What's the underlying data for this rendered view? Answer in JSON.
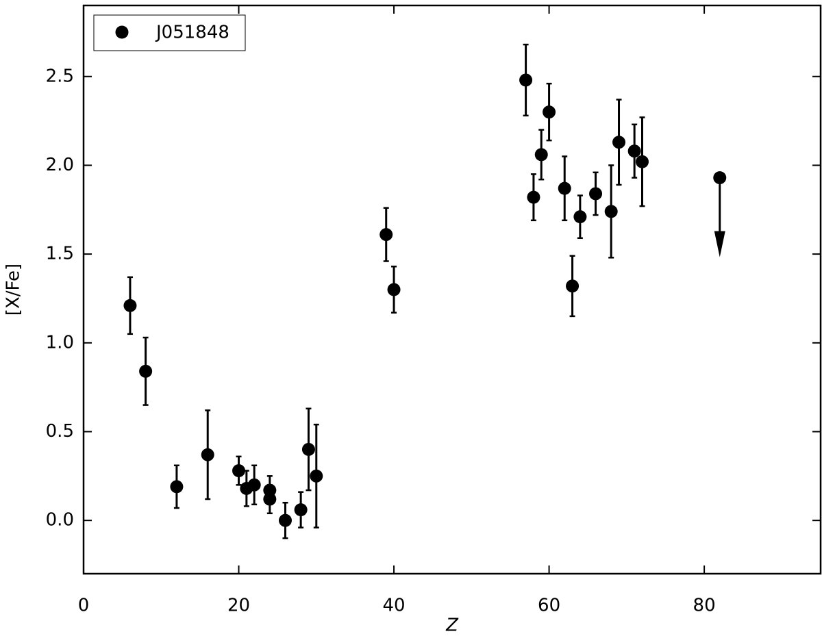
{
  "chart_data": {
    "type": "scatter",
    "xlabel": "Z",
    "ylabel": "[X/Fe]",
    "xlim": [
      0,
      95
    ],
    "ylim": [
      -0.3,
      2.9
    ],
    "xticks": [
      0,
      20,
      40,
      60,
      80
    ],
    "yticks": [
      {
        "value": 0,
        "label": "0.0"
      },
      0.5,
      {
        "value": 1,
        "label": "1.0"
      },
      1.5,
      {
        "value": 2,
        "label": "2.0"
      },
      2.5
    ],
    "legend": "upper left",
    "series": [
      {
        "name": "J051848",
        "color": "#000000",
        "x": [
          6,
          8,
          12,
          16,
          20,
          21,
          22,
          24,
          24,
          26,
          28,
          29,
          30,
          39,
          40,
          57,
          58,
          59,
          60,
          62,
          63,
          64,
          66,
          68,
          69,
          71,
          72,
          82
        ],
        "values": [
          1.21,
          0.84,
          0.19,
          0.37,
          0.28,
          0.18,
          0.2,
          0.17,
          0.12,
          0.0,
          0.06,
          0.4,
          0.25,
          1.61,
          1.3,
          2.48,
          1.82,
          2.06,
          2.3,
          1.87,
          1.32,
          1.71,
          1.84,
          1.74,
          2.13,
          2.08,
          2.02,
          1.93
        ],
        "errors": [
          0.16,
          0.19,
          0.12,
          0.25,
          0.08,
          0.1,
          0.11,
          0.08,
          0.08,
          0.1,
          0.1,
          0.23,
          0.29,
          0.15,
          0.13,
          0.2,
          0.13,
          0.14,
          0.16,
          0.18,
          0.17,
          0.12,
          0.12,
          0.26,
          0.24,
          0.15,
          0.25,
          null
        ],
        "upper_limit": [
          false,
          false,
          false,
          false,
          false,
          false,
          false,
          false,
          false,
          false,
          false,
          false,
          false,
          false,
          false,
          false,
          false,
          false,
          false,
          false,
          false,
          false,
          false,
          false,
          false,
          false,
          false,
          true
        ]
      }
    ]
  }
}
